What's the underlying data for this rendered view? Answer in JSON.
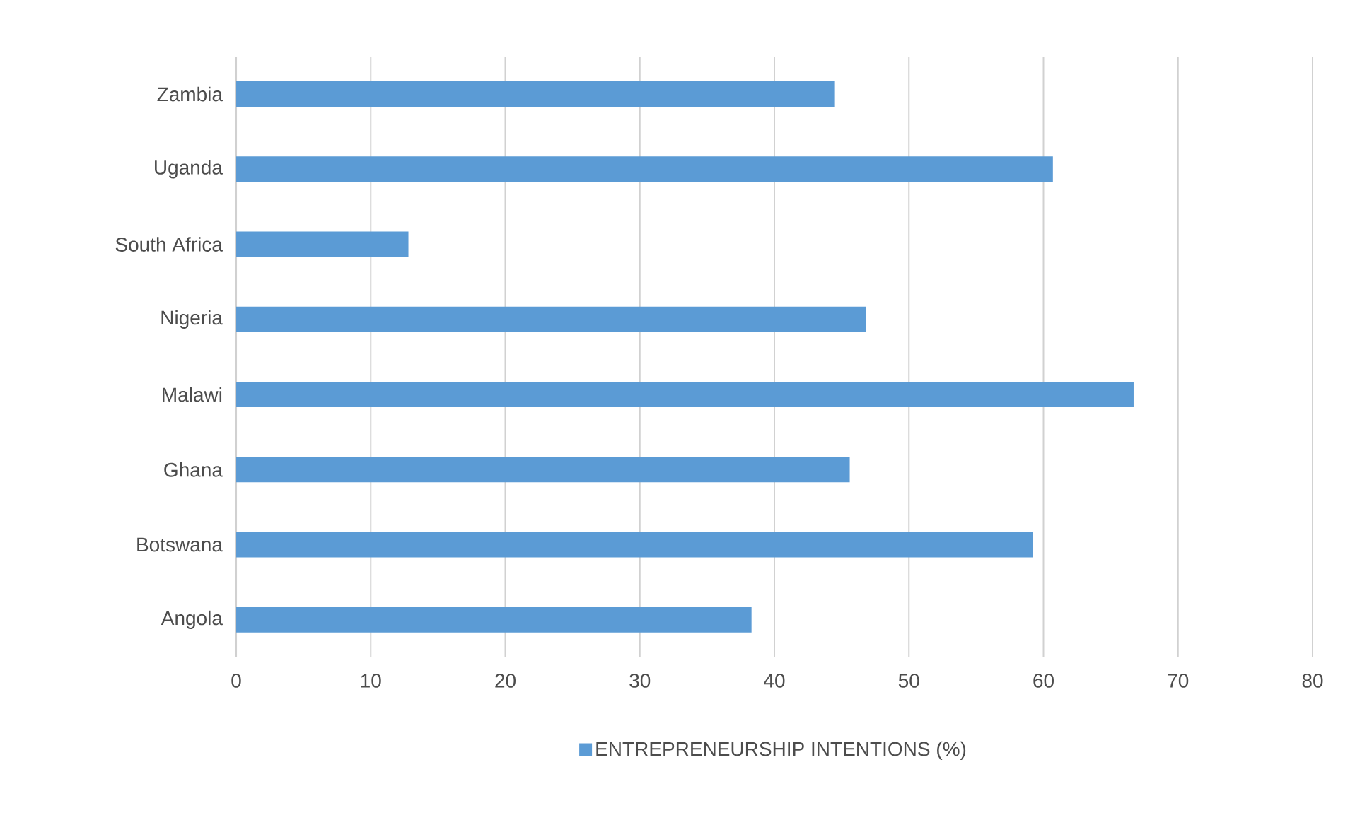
{
  "chart_data": {
    "type": "bar",
    "orientation": "horizontal",
    "categories": [
      "Zambia",
      "Uganda",
      "South Africa",
      "Nigeria",
      "Malawi",
      "Ghana",
      "Botswana",
      "Angola"
    ],
    "series": [
      {
        "name": "ENTREPRENEURSHIP INTENTIONS (%)",
        "color": "#5b9bd5",
        "values": [
          44.5,
          60.7,
          12.8,
          46.8,
          66.7,
          45.6,
          59.2,
          38.3
        ]
      }
    ],
    "xlim": [
      0,
      80
    ],
    "xticks": [
      0,
      10,
      20,
      30,
      40,
      50,
      60,
      70,
      80
    ],
    "grid": "x",
    "legend": "bottom"
  }
}
